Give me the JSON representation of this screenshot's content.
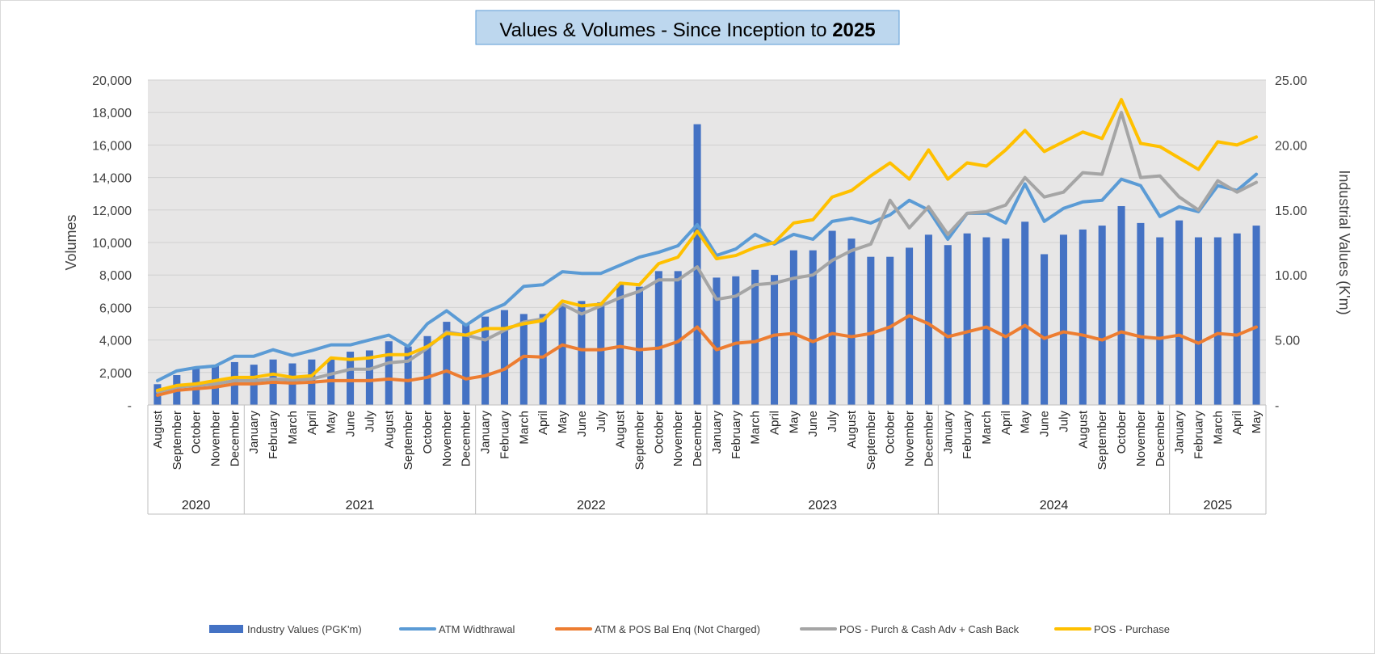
{
  "chart_data": {
    "type": "bar",
    "title_main": "Values & Volumes - Since Inception to",
    "title_year": "2025",
    "ylabel_left": "Volumes",
    "ylabel_right": "Industrial Values (K'm)",
    "y_left": {
      "min": 0,
      "max": 20000,
      "step": 2000,
      "tick_labels": [
        "-",
        "2,000",
        "4,000",
        "6,000",
        "8,000",
        "10,000",
        "12,000",
        "14,000",
        "16,000",
        "18,000",
        "20,000"
      ]
    },
    "y_right": {
      "min": 0,
      "max": 25,
      "step": 5,
      "tick_labels": [
        "-",
        "5.00",
        "10.00",
        "15.00",
        "20.00",
        "25.00"
      ]
    },
    "grid": true,
    "legend_position": "bottom",
    "colors": {
      "plot_bg": "#e7e6e6",
      "grid": "#d0d0d0",
      "title_bg": "#bdd7ee",
      "title_border": "#5b9bd5"
    },
    "categories": [
      "August",
      "September",
      "October",
      "November",
      "December",
      "January",
      "February",
      "March",
      "April",
      "May",
      "June",
      "July",
      "August",
      "September",
      "October",
      "November",
      "December",
      "January",
      "February",
      "March",
      "April",
      "May",
      "June",
      "July",
      "August",
      "September",
      "October",
      "November",
      "December",
      "January",
      "February",
      "March",
      "April",
      "May",
      "June",
      "July",
      "August",
      "September",
      "October",
      "November",
      "December",
      "January",
      "February",
      "March",
      "April",
      "May",
      "June",
      "July",
      "August",
      "September",
      "October",
      "November",
      "December",
      "January",
      "February",
      "March",
      "April",
      "May"
    ],
    "year_groups": [
      {
        "label": "2020",
        "count": 5
      },
      {
        "label": "2021",
        "count": 12
      },
      {
        "label": "2022",
        "count": 12
      },
      {
        "label": "2023",
        "count": 12
      },
      {
        "label": "2024",
        "count": 12
      },
      {
        "label": "2025",
        "count": 5
      }
    ],
    "series": [
      {
        "name": "Industry Values (PGK'm)",
        "kind": "bar",
        "axis": "right",
        "color": "#4472c4",
        "values": [
          1.6,
          2.3,
          2.9,
          3.0,
          3.3,
          3.1,
          3.5,
          3.2,
          3.5,
          3.5,
          4.1,
          4.2,
          4.9,
          4.5,
          5.3,
          6.4,
          6.3,
          6.8,
          7.3,
          7.0,
          7.0,
          7.7,
          8.0,
          7.9,
          9.3,
          9.1,
          10.3,
          10.3,
          21.6,
          9.8,
          9.9,
          10.4,
          10.0,
          11.9,
          11.9,
          13.4,
          12.8,
          11.4,
          11.4,
          12.1,
          13.1,
          12.3,
          13.2,
          12.9,
          12.8,
          14.1,
          11.6,
          13.1,
          13.5,
          13.8,
          15.3,
          14.0,
          12.9,
          14.2,
          12.9,
          12.9,
          13.2,
          13.8
        ]
      },
      {
        "name": "ATM Widthrawal",
        "kind": "line",
        "axis": "left",
        "color": "#5b9bd5",
        "values": [
          1500,
          2100,
          2300,
          2400,
          3000,
          3000,
          3400,
          3050,
          3350,
          3700,
          3700,
          4000,
          4300,
          3600,
          5000,
          5800,
          4900,
          5700,
          6200,
          7300,
          7400,
          8200,
          8100,
          8100,
          8600,
          9100,
          9400,
          9800,
          11100,
          9200,
          9600,
          10500,
          9900,
          10500,
          10200,
          11300,
          11500,
          11200,
          11700,
          12600,
          12000,
          10200,
          11800,
          11800,
          11200,
          13600,
          11300,
          12100,
          12500,
          12600,
          13900,
          13500,
          11600,
          12200,
          11900,
          13500,
          13200,
          14200
        ]
      },
      {
        "name": "ATM & POS Bal Enq (Not Charged)",
        "kind": "line",
        "axis": "left",
        "color": "#ed7d31",
        "values": [
          600,
          900,
          1000,
          1100,
          1300,
          1300,
          1400,
          1350,
          1400,
          1500,
          1500,
          1500,
          1600,
          1500,
          1700,
          2100,
          1600,
          1800,
          2200,
          3000,
          2950,
          3700,
          3400,
          3400,
          3600,
          3400,
          3500,
          3900,
          4800,
          3400,
          3800,
          3900,
          4300,
          4400,
          3900,
          4400,
          4200,
          4400,
          4800,
          5500,
          5000,
          4200,
          4500,
          4800,
          4200,
          4900,
          4100,
          4500,
          4300,
          4000,
          4500,
          4200,
          4100,
          4300,
          3800,
          4400,
          4300,
          4800
        ]
      },
      {
        "name": "POS - Purch & Cash Adv + Cash Back",
        "kind": "line",
        "axis": "left",
        "color": "#a5a5a5",
        "values": [
          800,
          1100,
          1200,
          1300,
          1500,
          1500,
          1600,
          1550,
          1600,
          1900,
          2200,
          2200,
          2600,
          2700,
          3500,
          4500,
          4300,
          4000,
          4600,
          5100,
          5300,
          6200,
          5600,
          6100,
          6600,
          7000,
          7700,
          7700,
          8500,
          6500,
          6700,
          7400,
          7500,
          7800,
          8000,
          8900,
          9500,
          9900,
          12600,
          10900,
          12200,
          10500,
          11800,
          11900,
          12300,
          14000,
          12800,
          13100,
          14300,
          14200,
          18000,
          14000,
          14100,
          12800,
          12000,
          13800,
          13100,
          13700
        ]
      },
      {
        "name": "POS - Purchase",
        "kind": "line",
        "axis": "left",
        "color": "#ffc000",
        "values": [
          900,
          1200,
          1300,
          1500,
          1700,
          1700,
          1900,
          1700,
          1800,
          2900,
          2800,
          2900,
          3100,
          3100,
          3600,
          4400,
          4300,
          4700,
          4700,
          5000,
          5200,
          6400,
          6100,
          6200,
          7500,
          7400,
          8700,
          9100,
          10700,
          9000,
          9200,
          9700,
          10000,
          11200,
          11400,
          12800,
          13200,
          14100,
          14900,
          13900,
          15700,
          13900,
          14900,
          14700,
          15700,
          16900,
          15600,
          16200,
          16800,
          16400,
          18800,
          16100,
          15900,
          15200,
          14500,
          16200,
          16000,
          16500
        ]
      }
    ]
  }
}
